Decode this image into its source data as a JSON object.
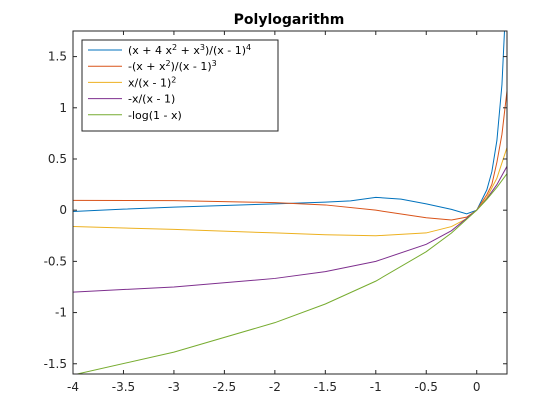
{
  "chart_data": {
    "type": "line",
    "title": "Polylogarithm",
    "xlabel": "",
    "ylabel": "",
    "xlim": [
      -4,
      0.3
    ],
    "ylim": [
      -1.6,
      1.75
    ],
    "xticks": [
      -4,
      -3.5,
      -3,
      -2.5,
      -2,
      -1.5,
      -1,
      -0.5,
      0
    ],
    "yticks": [
      -1.5,
      -1,
      -0.5,
      0,
      0.5,
      1,
      1.5
    ],
    "xtick_labels": [
      "-4",
      "-3.5",
      "-3",
      "-2.5",
      "-2",
      "-1.5",
      "-1",
      "-0.5",
      "0"
    ],
    "ytick_labels": [
      "-1.5",
      "-1",
      "-0.5",
      "0",
      "0.5",
      "1",
      "1.5"
    ],
    "grid": false,
    "legend_position": "top-left",
    "series": [
      {
        "name_parts": [
          "(x + 4 x",
          "2",
          " + x",
          "3",
          ")/(x - 1)",
          "4"
        ],
        "color": "#0072bd",
        "x": [
          -4,
          -3.5,
          -3,
          -2.5,
          -2,
          -1.5,
          -1.25,
          -1,
          -0.75,
          -0.5,
          -0.25,
          -0.1,
          0,
          0.1,
          0.15,
          0.2,
          0.25,
          0.3
        ],
        "y": [
          -0.0128,
          0.0098,
          0.0293,
          0.0463,
          0.0617,
          0.0781,
          0.0914,
          0.125,
          0.1083,
          0.0617,
          0.0082,
          -0.0354,
          0,
          0.1981,
          0.3758,
          0.6816,
          1.2263,
          2.2679
        ]
      },
      {
        "name_parts": [
          "-(x + x",
          "2",
          ")/(x - 1)",
          "3"
        ],
        "color": "#d95319",
        "x": [
          -4,
          -3,
          -2,
          -1.5,
          -1,
          -0.5,
          -0.25,
          -0.1,
          0,
          0.1,
          0.15,
          0.2,
          0.25,
          0.3
        ],
        "y": [
          0.096,
          0.0938,
          0.0741,
          0.0512,
          0,
          -0.0741,
          -0.096,
          -0.0676,
          0,
          0.1509,
          0.2513,
          0.4688,
          0.7407,
          1.1662
        ]
      },
      {
        "name_parts": [
          "x/(x - 1)",
          "2"
        ],
        "color": "#edb120",
        "x": [
          -4,
          -3,
          -2,
          -1.5,
          -1,
          -0.5,
          -0.25,
          -0.1,
          0,
          0.1,
          0.2,
          0.3
        ],
        "y": [
          -0.16,
          -0.1875,
          -0.2222,
          -0.24,
          -0.25,
          -0.2222,
          -0.16,
          -0.0826,
          0,
          0.1235,
          0.3125,
          0.6122
        ]
      },
      {
        "name_parts": [
          "-x/(x - 1)"
        ],
        "color": "#7e2f8e",
        "x": [
          -4,
          -3,
          -2,
          -1.5,
          -1,
          -0.5,
          -0.25,
          0,
          0.1,
          0.2,
          0.3
        ],
        "y": [
          -0.8,
          -0.75,
          -0.6667,
          -0.6,
          -0.5,
          -0.3333,
          -0.2,
          0,
          0.1111,
          0.25,
          0.4286
        ]
      },
      {
        "name_parts": [
          "-log(1 - x)"
        ],
        "color": "#77ac30",
        "x": [
          -4,
          -3,
          -2,
          -1.5,
          -1,
          -0.5,
          -0.25,
          0,
          0.1,
          0.2,
          0.3
        ],
        "y": [
          -1.6094,
          -1.3863,
          -1.0986,
          -0.9163,
          -0.6931,
          -0.4055,
          -0.2231,
          0,
          0.1054,
          0.2231,
          0.3567
        ]
      }
    ]
  }
}
